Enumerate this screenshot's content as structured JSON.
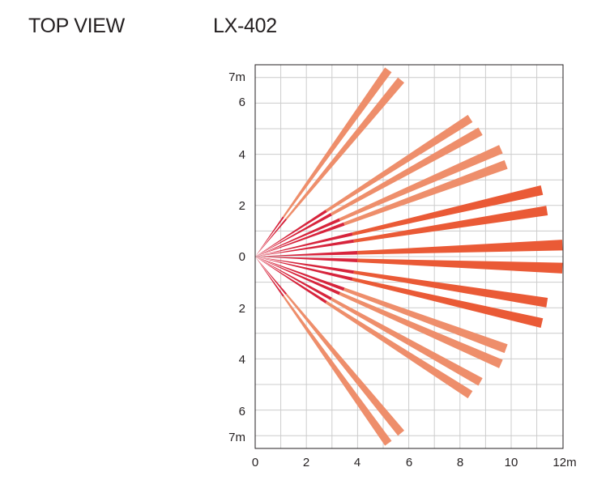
{
  "header": {
    "view_title": "TOP VIEW",
    "model_name": "LX-402"
  },
  "axes": {
    "x_ticks": [
      "0",
      "2",
      "4",
      "6",
      "8",
      "10",
      "12m"
    ],
    "y_ticks_upper": [
      "7m",
      "6",
      "4",
      "2",
      "0"
    ],
    "y_ticks_lower": [
      "2",
      "4",
      "6",
      "7m"
    ],
    "grid": true
  },
  "colors": {
    "near_zone": "#d7243c",
    "far_light": "#f4b196",
    "far_mid": "#ee8e6b",
    "far_strong": "#ea5a36",
    "grid": "#cccccc",
    "axis": "#231f20"
  },
  "beams": [
    {
      "end": [
        5.2,
        7.3
      ],
      "near_to": 1.9,
      "width": 0.32
    },
    {
      "end": [
        5.7,
        6.9
      ],
      "near_to": 1.9,
      "width": 0.32
    },
    {
      "end": [
        8.4,
        5.4
      ],
      "near_to": 3.3,
      "width": 0.34
    },
    {
      "end": [
        8.8,
        4.9
      ],
      "near_to": 3.4,
      "width": 0.34
    },
    {
      "end": [
        9.6,
        4.2
      ],
      "near_to": 3.6,
      "width": 0.36
    },
    {
      "end": [
        9.8,
        3.6
      ],
      "near_to": 3.7,
      "width": 0.36
    },
    {
      "end": [
        11.2,
        2.6
      ],
      "near_to": 3.9,
      "width": 0.38
    },
    {
      "end": [
        11.4,
        1.8
      ],
      "near_to": 3.9,
      "width": 0.38
    },
    {
      "end": [
        12.0,
        0.45
      ],
      "near_to": 4.0,
      "width": 0.42
    },
    {
      "end": [
        12.0,
        -0.45
      ],
      "near_to": 4.0,
      "width": 0.42
    },
    {
      "end": [
        11.4,
        -1.8
      ],
      "near_to": 3.9,
      "width": 0.38
    },
    {
      "end": [
        11.2,
        -2.6
      ],
      "near_to": 3.9,
      "width": 0.38
    },
    {
      "end": [
        9.8,
        -3.6
      ],
      "near_to": 3.7,
      "width": 0.36
    },
    {
      "end": [
        9.6,
        -4.2
      ],
      "near_to": 3.6,
      "width": 0.36
    },
    {
      "end": [
        8.8,
        -4.9
      ],
      "near_to": 3.4,
      "width": 0.34
    },
    {
      "end": [
        8.4,
        -5.4
      ],
      "near_to": 3.3,
      "width": 0.34
    },
    {
      "end": [
        5.7,
        -6.9
      ],
      "near_to": 1.9,
      "width": 0.32
    },
    {
      "end": [
        5.2,
        -7.3
      ],
      "near_to": 1.9,
      "width": 0.32
    }
  ]
}
